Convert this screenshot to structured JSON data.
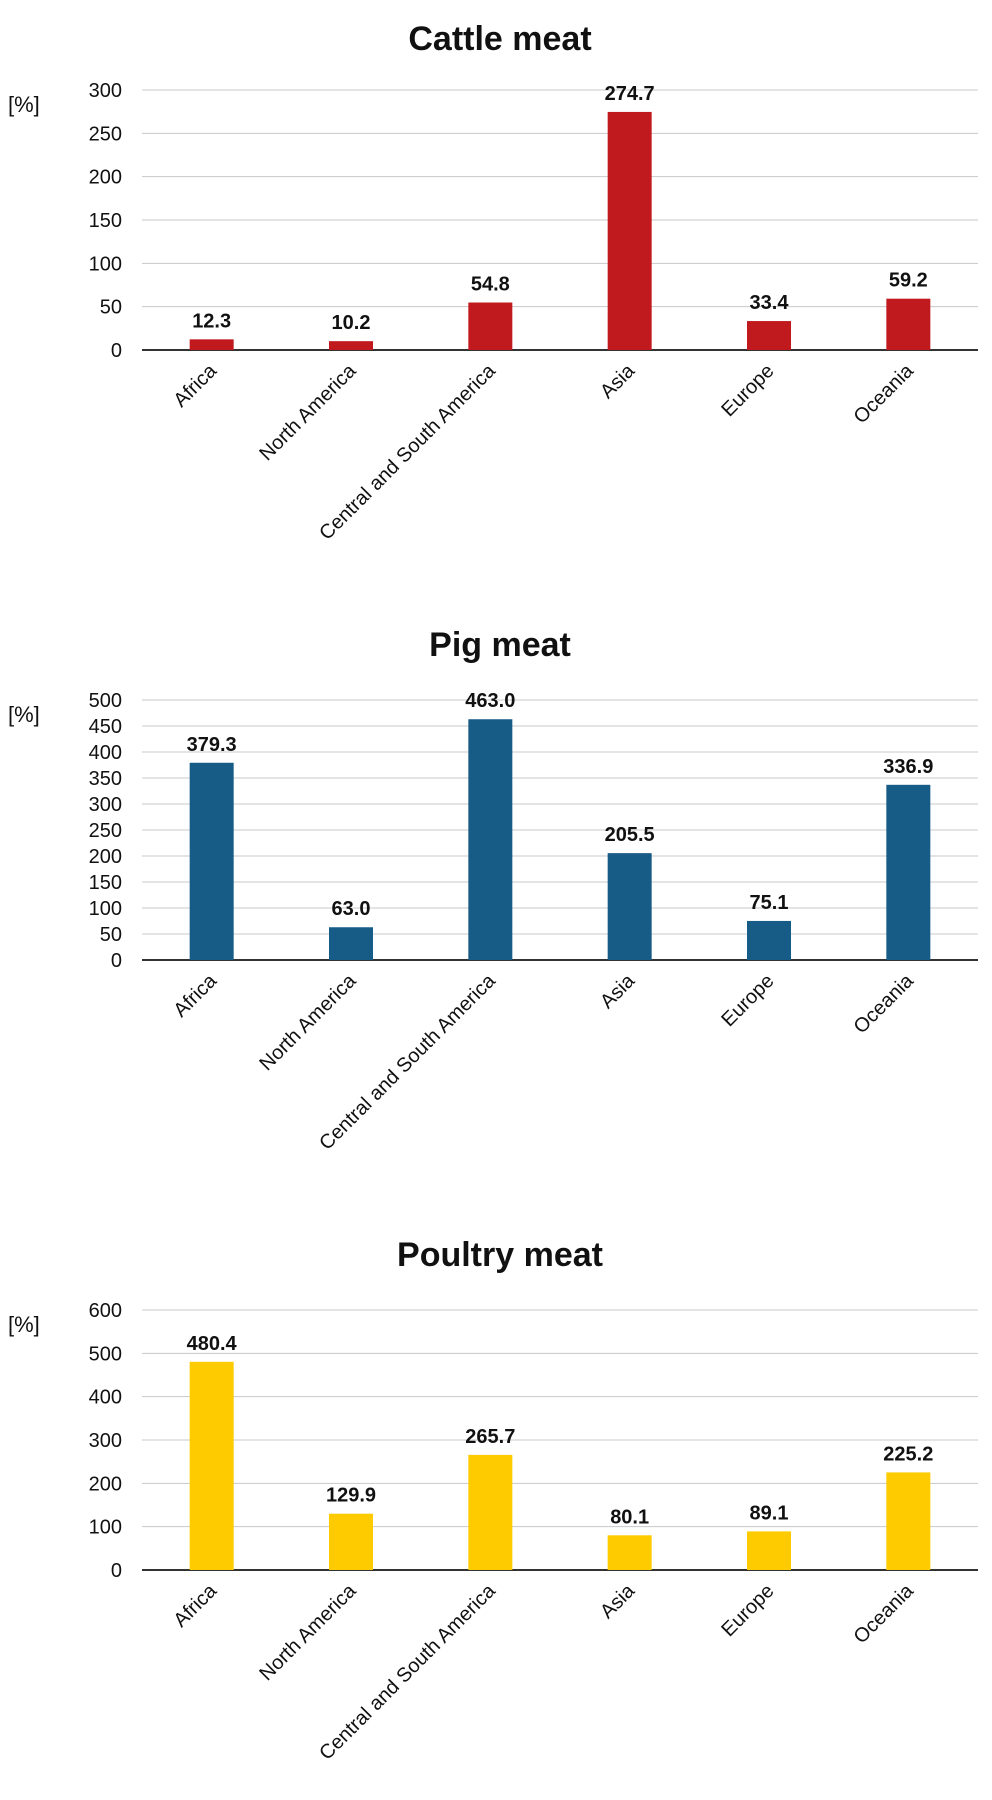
{
  "chart_data": [
    {
      "type": "bar",
      "title": "Cattle meat",
      "ylabel": "[%]",
      "xlabel": "",
      "categories": [
        "Africa",
        "North America",
        "Central and South America",
        "Asia",
        "Europe",
        "Oceania"
      ],
      "values": [
        12.3,
        10.2,
        54.8,
        274.7,
        33.4,
        59.2
      ],
      "value_labels": [
        "12.3",
        "10.2",
        "54.8",
        "274.7",
        "33.4",
        "59.2"
      ],
      "ylim": [
        0,
        300
      ],
      "yticks": [
        0,
        50,
        100,
        150,
        200,
        250,
        300
      ],
      "grid": true,
      "color": "#c01a1f"
    },
    {
      "type": "bar",
      "title": "Pig meat",
      "ylabel": "[%]",
      "xlabel": "",
      "categories": [
        "Africa",
        "North America",
        "Central and South America",
        "Asia",
        "Europe",
        "Oceania"
      ],
      "values": [
        379.3,
        63.0,
        463.0,
        205.5,
        75.1,
        336.9
      ],
      "value_labels": [
        "379.3",
        "63.0",
        "463.0",
        "205.5",
        "75.1",
        "336.9"
      ],
      "ylim": [
        0,
        500
      ],
      "yticks": [
        0,
        50,
        100,
        150,
        200,
        250,
        300,
        350,
        400,
        450,
        500
      ],
      "grid": true,
      "color": "#175c86"
    },
    {
      "type": "bar",
      "title": "Poultry meat",
      "ylabel": "[%]",
      "xlabel": "",
      "categories": [
        "Africa",
        "North America",
        "Central and South America",
        "Asia",
        "Europe",
        "Oceania"
      ],
      "values": [
        480.4,
        129.9,
        265.7,
        80.1,
        89.1,
        225.2
      ],
      "value_labels": [
        "480.4",
        "129.9",
        "265.7",
        "80.1",
        "89.1",
        "225.2"
      ],
      "ylim": [
        0,
        600
      ],
      "yticks": [
        0,
        100,
        200,
        300,
        400,
        500,
        600
      ],
      "grid": true,
      "color": "#fdcb00"
    }
  ]
}
